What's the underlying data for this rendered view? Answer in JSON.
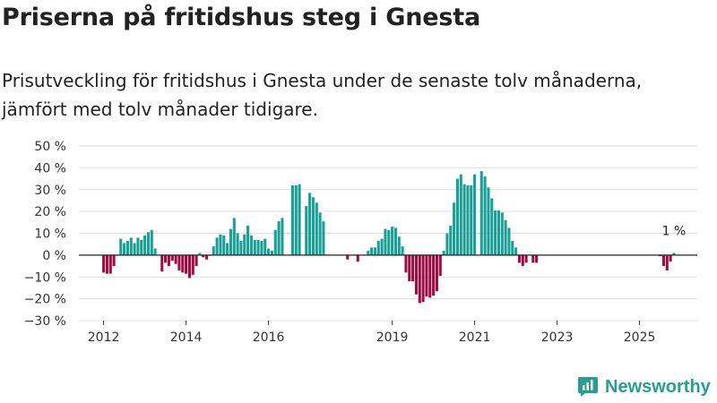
{
  "title": "Priserna på fritidshus steg i Gnesta",
  "subtitle": "Prisutveckling för fritidshus i Gnesta under de senaste tolv månaderna, jämfört med tolv månader tidigare.",
  "brand": "Newsworthy",
  "colors": {
    "positive": "#1a9e96",
    "negative": "#9b0d44",
    "grid": "#dddddd",
    "zero": "#222222",
    "brand": "#2a9d8f"
  },
  "chart_data": {
    "type": "bar",
    "title": "Priserna på fritidshus steg i Gnesta",
    "ylabel": "",
    "xlabel": "",
    "ylim": [
      -30,
      50
    ],
    "yticks": [
      -30,
      -20,
      -10,
      0,
      10,
      20,
      30,
      40,
      50
    ],
    "ytick_labels": [
      "−30 %",
      "−20 %",
      "−10 %",
      "0 %",
      "10 %",
      "20 %",
      "30 %",
      "40 %",
      "50 %"
    ],
    "xticks": [
      {
        "label": "2012",
        "t": 2012.0
      },
      {
        "label": "2014",
        "t": 2014.0
      },
      {
        "label": "2016",
        "t": 2016.0
      },
      {
        "label": "2019",
        "t": 2019.0
      },
      {
        "label": "2021",
        "t": 2021.0
      },
      {
        "label": "2023",
        "t": 2023.0
      },
      {
        "label": "2025",
        "t": 2025.0
      }
    ],
    "x_range": [
      2011.4,
      2026.4
    ],
    "start": "2012-01",
    "values": [
      -8,
      -8.5,
      -8.5,
      -5,
      0,
      7.5,
      5.5,
      6.5,
      8,
      5.5,
      8,
      7,
      9,
      10.5,
      11.5,
      3,
      null,
      -7.5,
      -3.5,
      -5,
      -2.5,
      -4,
      -7,
      -8,
      -8.5,
      -10.5,
      -9,
      -5,
      1,
      -1,
      -2,
      0,
      4,
      8,
      9.5,
      9,
      5.5,
      12,
      17,
      10,
      6.5,
      9.5,
      13.5,
      9,
      7,
      7,
      6.5,
      7.5,
      3,
      2,
      11.5,
      15.5,
      17,
      null,
      null,
      32,
      32,
      32.5,
      null,
      22.5,
      28.5,
      26.5,
      24,
      19.5,
      15.5,
      null,
      null,
      null,
      null,
      null,
      null,
      -2,
      null,
      null,
      -3,
      null,
      null,
      2,
      3.5,
      3.5,
      6.5,
      7.5,
      12,
      11.5,
      13,
      12.5,
      8.5,
      4,
      -8,
      -12,
      -12,
      -18,
      -22,
      -21.5,
      -19,
      -19.5,
      -18.5,
      -16.5,
      -9.5,
      2,
      10,
      13.5,
      24,
      35,
      37,
      32.5,
      32,
      32,
      37,
      null,
      38.5,
      36,
      31,
      26,
      20.5,
      20.5,
      19.5,
      16,
      12.5,
      6.5,
      3.5,
      -3.5,
      -5,
      -3.5,
      null,
      -3.5,
      -3.5,
      null,
      null,
      null,
      null,
      null,
      null,
      null,
      null,
      null,
      null,
      null,
      null,
      null,
      null,
      null,
      null,
      null,
      null,
      null,
      null,
      null,
      null,
      null,
      null,
      null,
      null,
      null,
      null,
      null,
      null,
      null,
      null,
      null,
      null,
      null,
      -0.5,
      -5,
      -7,
      -3,
      1
    ],
    "annotations": [
      {
        "text": "1 %",
        "target": "last"
      }
    ]
  }
}
